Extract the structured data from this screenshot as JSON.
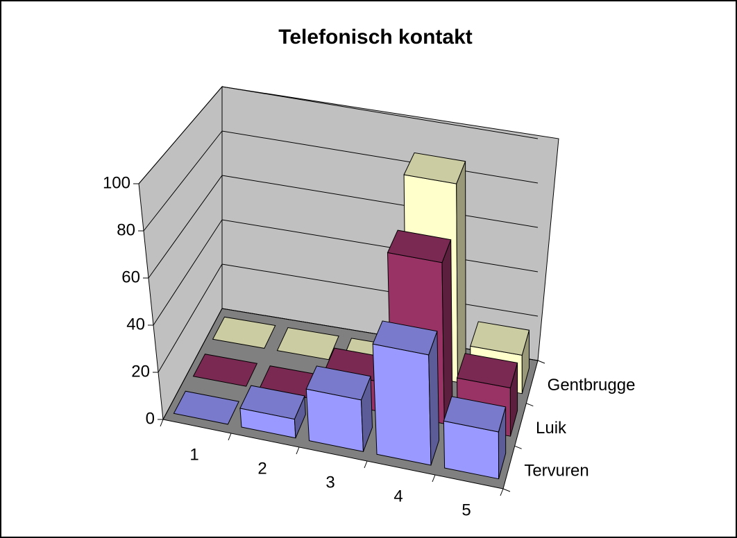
{
  "chart_data": {
    "type": "bar3d",
    "title": "Telefonisch kontakt",
    "categories": [
      "1",
      "2",
      "3",
      "4",
      "5"
    ],
    "series": [
      {
        "name": "Tervuren",
        "color": "#9999ff",
        "values": [
          0,
          8,
          22,
          47,
          20
        ]
      },
      {
        "name": "Luik",
        "color": "#993366",
        "values": [
          0,
          0,
          13,
          70,
          21
        ]
      },
      {
        "name": "Gentbrugge",
        "color": "#ffffcc",
        "values": [
          0,
          0,
          0,
          88,
          17
        ]
      }
    ],
    "ylim": [
      0,
      100
    ],
    "yticks": [
      0,
      20,
      40,
      60,
      80,
      100
    ],
    "grid": true
  }
}
